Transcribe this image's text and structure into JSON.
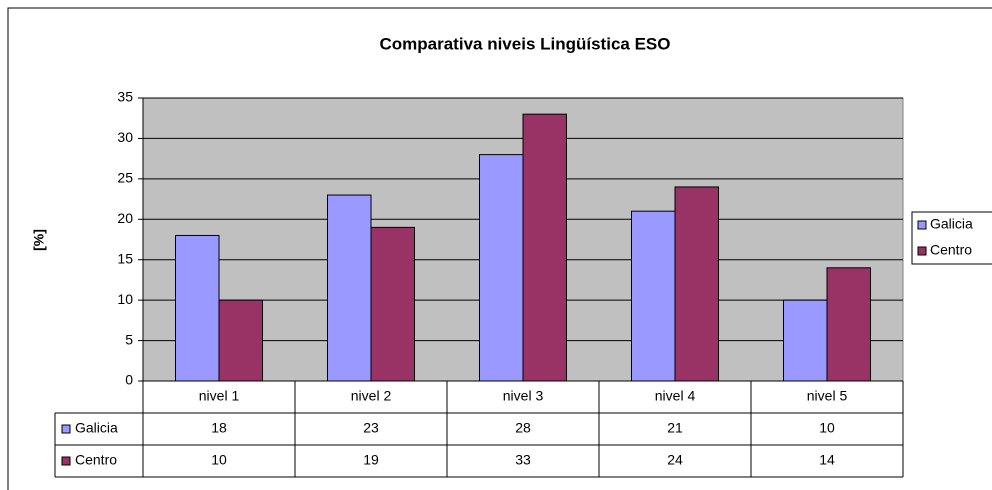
{
  "chart_data": {
    "type": "bar",
    "title": "Comparativa niveis Lingüística ESO",
    "ylabel": "[%]",
    "categories": [
      "nivel 1",
      "nivel 2",
      "nivel 3",
      "nivel 4",
      "nivel 5"
    ],
    "series": [
      {
        "name": "Galicia",
        "color": "#9999ff",
        "values": [
          18,
          23,
          28,
          21,
          10
        ]
      },
      {
        "name": "Centro",
        "color": "#993366",
        "values": [
          10,
          19,
          33,
          24,
          14
        ]
      }
    ],
    "ylim": [
      0,
      35
    ],
    "yticks": [
      0,
      5,
      10,
      15,
      20,
      25,
      30,
      35
    ],
    "grid": true,
    "legend": "right",
    "plot_background": "#c0c0c0"
  }
}
